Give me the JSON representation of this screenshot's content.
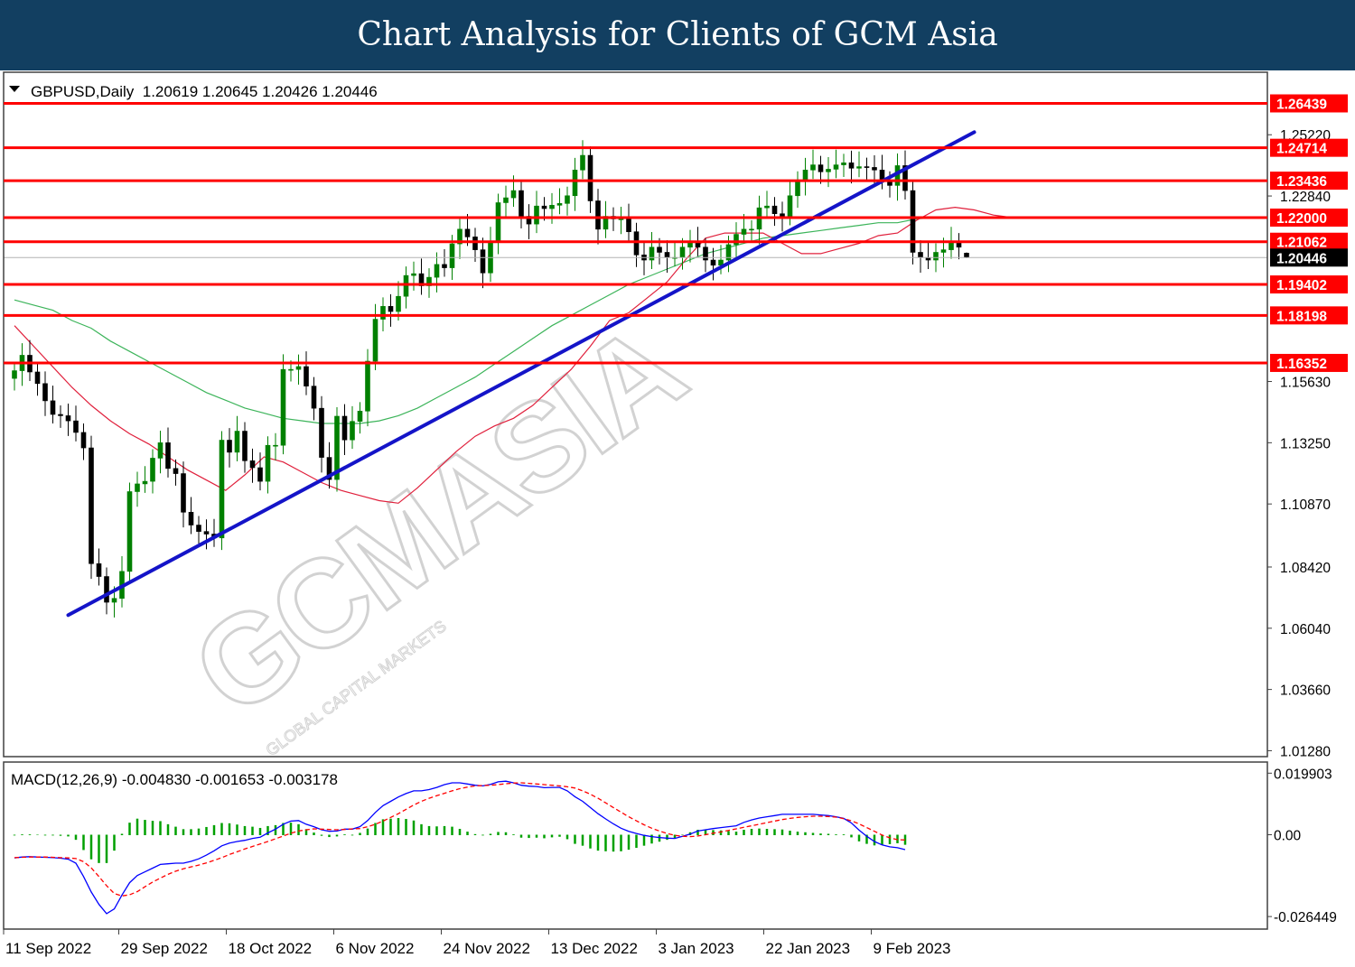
{
  "header": {
    "title": "Chart Analysis for Clients of GCM Asia"
  },
  "price_panel": {
    "info_line": "GBPUSD,Daily  1.20619 1.20645 1.20426 1.20446",
    "dropdown_icon": "triangle-down-icon",
    "current_price": "1.20446"
  },
  "macd_panel": {
    "info_line": "MACD(12,26,9) -0.004830 -0.001653 -0.003178",
    "axis_labels": [
      "0.019903",
      "0.00",
      "-0.026449"
    ]
  },
  "watermark": {
    "main": "GCMASIA",
    "sub": "GLOBAL CAPITAL MARKETS"
  },
  "colors": {
    "header_bg": "#123f61",
    "resistance_line": "#ff0000",
    "trend_line": "#1414c8",
    "ma_fast": "#e0203c",
    "ma_slow": "#3cb45a",
    "bull_candle": "#008000",
    "bear_candle": "#000000",
    "macd_line": "#0000ff",
    "signal_line": "#ff0000",
    "histogram": "#00a000"
  },
  "chart_data": {
    "type": "candlestick",
    "symbol": "GBPUSD",
    "timeframe": "Daily",
    "ohlc_last": {
      "open": 1.20619,
      "high": 1.20645,
      "low": 1.20426,
      "close": 1.20446
    },
    "ylim": [
      1.0105,
      1.2765
    ],
    "y_ticks": [
      1.2522,
      1.2284,
      1.1563,
      1.1325,
      1.1087,
      1.0842,
      1.0604,
      1.0366,
      1.0128
    ],
    "y_tick_labels": [
      "1.25220",
      "1.22840",
      "1.15630",
      "1.13250",
      "1.10870",
      "1.08420",
      "1.06040",
      "1.03660",
      "1.01280"
    ],
    "horizontal_levels": [
      1.26439,
      1.24714,
      1.23436,
      1.22,
      1.21062,
      1.19402,
      1.18198,
      1.16352
    ],
    "horizontal_level_labels": [
      "1.26439",
      "1.24714",
      "1.23436",
      "1.22000",
      "1.21062",
      "1.19402",
      "1.18198",
      "1.16352"
    ],
    "x_labels": [
      "11 Sep 2022",
      "29 Sep 2022",
      "18 Oct 2022",
      "6 Nov 2022",
      "24 Nov 2022",
      "13 Dec 2022",
      "3 Jan 2023",
      "22 Jan 2023",
      "9 Feb 2023"
    ],
    "x_label_bars": [
      0,
      15,
      29,
      43,
      57,
      71,
      85,
      99,
      113
    ],
    "trend_line": {
      "start": {
        "bar": 7,
        "price": 1.0655
      },
      "end": {
        "bar": 125,
        "price": 1.2532
      }
    },
    "close": [
      1.1605,
      1.1665,
      1.16,
      1.1555,
      1.1488,
      1.1435,
      1.143,
      1.141,
      1.1365,
      1.1305,
      1.0855,
      1.0805,
      1.0705,
      1.072,
      1.0825,
      1.1135,
      1.1165,
      1.1175,
      1.1265,
      1.1325,
      1.1225,
      1.1205,
      1.1055,
      1.1005,
      1.098,
      1.097,
      1.0955,
      1.1335,
      1.1288,
      1.137,
      1.1255,
      1.1228,
      1.1175,
      1.1315,
      1.1315,
      1.161,
      1.161,
      1.1621,
      1.1545,
      1.1459,
      1.1268,
      1.1182,
      1.1428,
      1.1336,
      1.1408,
      1.1448,
      1.1642,
      1.1805,
      1.1855,
      1.1835,
      1.1894,
      1.1975,
      1.1982,
      1.1935,
      1.1968,
      1.2018,
      1.2005,
      1.2098,
      1.2155,
      1.2125,
      1.2075,
      1.1985,
      1.2105,
      1.2258,
      1.2277,
      1.2305,
      1.2205,
      1.2175,
      1.2245,
      1.2235,
      1.2248,
      1.2255,
      1.2285,
      1.2385,
      1.2442,
      1.2265,
      1.2155,
      1.2205,
      1.2195,
      1.2195,
      1.2145,
      1.2055,
      1.2035,
      1.2085,
      1.2065,
      1.2045,
      1.2045,
      1.2085,
      1.2105,
      1.2085,
      1.2035,
      1.2015,
      1.2035,
      1.2095,
      1.2135,
      1.2155,
      1.2155,
      1.2238,
      1.2245,
      1.2215,
      1.2205,
      1.2285,
      1.2345,
      1.2385,
      1.2405,
      1.2378,
      1.2388,
      1.2405,
      1.2413,
      1.2392,
      1.2398,
      1.2395,
      1.2385,
      1.2345,
      1.2325,
      1.2402,
      1.2305,
      1.2065,
      1.2045,
      1.2035,
      1.2065,
      1.2075,
      1.2105,
      1.2085,
      1.2045
    ],
    "fast_ma": [
      1.178,
      1.17,
      1.162,
      1.154,
      1.147,
      1.141,
      1.136,
      1.132,
      1.127,
      1.122,
      1.118,
      1.114,
      1.12,
      1.127,
      1.125,
      1.121,
      1.117,
      1.114,
      1.112,
      1.11,
      1.109,
      1.115,
      1.122,
      1.129,
      1.135,
      1.139,
      1.142,
      1.147,
      1.154,
      1.161,
      1.17,
      1.18,
      1.183,
      1.189,
      1.195,
      1.204,
      1.212,
      1.214,
      1.214,
      1.214,
      1.21,
      1.206,
      1.206,
      1.208,
      1.21,
      1.213,
      1.214,
      1.219,
      1.223,
      1.224,
      1.223,
      1.221,
      1.22
    ],
    "slow_ma": [
      1.188,
      1.186,
      1.184,
      1.18,
      1.177,
      1.172,
      1.168,
      1.164,
      1.16,
      1.156,
      1.152,
      1.149,
      1.146,
      1.144,
      1.142,
      1.141,
      1.14,
      1.14,
      1.14,
      1.141,
      1.143,
      1.146,
      1.15,
      1.154,
      1.158,
      1.163,
      1.168,
      1.173,
      1.178,
      1.182,
      1.186,
      1.19,
      1.194,
      1.197,
      1.2,
      1.203,
      1.206,
      1.208,
      1.21,
      1.212,
      1.213,
      1.214,
      1.215,
      1.216,
      1.217,
      1.218,
      1.218,
      1.2195,
      1.22
    ],
    "macd": {
      "ylim": [
        -0.0305,
        0.0235
      ],
      "main_line": [
        -0.0075,
        -0.0072,
        -0.0071,
        -0.0072,
        -0.0073,
        -0.0074,
        -0.0076,
        -0.0079,
        -0.0092,
        -0.0135,
        -0.0185,
        -0.0225,
        -0.0255,
        -0.024,
        -0.0195,
        -0.0155,
        -0.0132,
        -0.012,
        -0.0108,
        -0.0096,
        -0.0094,
        -0.0092,
        -0.0092,
        -0.0086,
        -0.0078,
        -0.0066,
        -0.0052,
        -0.0036,
        -0.0027,
        -0.0022,
        -0.0018,
        -0.0012,
        -0.0008,
        0.0006,
        0.0018,
        0.0034,
        0.0044,
        0.0046,
        0.0034,
        0.0026,
        0.0016,
        0.0011,
        0.0012,
        0.0018,
        0.0018,
        0.0026,
        0.0046,
        0.0072,
        0.0094,
        0.0108,
        0.0122,
        0.0133,
        0.0142,
        0.0142,
        0.0146,
        0.0153,
        0.0162,
        0.0168,
        0.0168,
        0.0164,
        0.016,
        0.0158,
        0.0163,
        0.0171,
        0.0173,
        0.0168,
        0.016,
        0.0157,
        0.0156,
        0.0152,
        0.0153,
        0.0153,
        0.0142,
        0.0123,
        0.0108,
        0.0088,
        0.0068,
        0.0051,
        0.0035,
        0.0021,
        0.0011,
        0.0004,
        -0.0002,
        -0.0006,
        -0.0009,
        -0.0011,
        -0.0012,
        -0.0005,
        0.0002,
        0.0012,
        0.0016,
        0.002,
        0.0023,
        0.0026,
        0.0029,
        0.004,
        0.0048,
        0.0054,
        0.0058,
        0.0062,
        0.0066,
        0.0066,
        0.0066,
        0.0066,
        0.0066,
        0.0064,
        0.0062,
        0.0058,
        0.0053,
        0.0038,
        0.0015,
        -0.0005,
        -0.0022,
        -0.0033,
        -0.0039,
        -0.0042,
        -0.0048
      ],
      "signal_line": [
        -0.0074,
        -0.0073,
        -0.0072,
        -0.0072,
        -0.0072,
        -0.0073,
        -0.0074,
        -0.0075,
        -0.0077,
        -0.0087,
        -0.0107,
        -0.0135,
        -0.0165,
        -0.019,
        -0.0198,
        -0.0194,
        -0.0184,
        -0.0168,
        -0.0153,
        -0.014,
        -0.0128,
        -0.0118,
        -0.011,
        -0.0104,
        -0.0098,
        -0.0091,
        -0.0083,
        -0.0074,
        -0.0064,
        -0.0055,
        -0.0046,
        -0.0038,
        -0.003,
        -0.0022,
        -0.0013,
        -0.0004,
        0.0005,
        0.0012,
        0.0016,
        0.0019,
        0.0018,
        0.0017,
        0.0016,
        0.0017,
        0.0019,
        0.002,
        0.0026,
        0.0034,
        0.0044,
        0.0056,
        0.0068,
        0.0082,
        0.0096,
        0.0108,
        0.0118,
        0.0126,
        0.0134,
        0.0142,
        0.0149,
        0.0154,
        0.0158,
        0.0159,
        0.016,
        0.0162,
        0.0165,
        0.0167,
        0.0168,
        0.0166,
        0.0164,
        0.0162,
        0.016,
        0.0158,
        0.0155,
        0.0151,
        0.0142,
        0.0131,
        0.0118,
        0.0103,
        0.0088,
        0.0073,
        0.0058,
        0.0045,
        0.0032,
        0.0021,
        0.0012,
        0.0004,
        -0.0002,
        -0.0005,
        -0.0006,
        -0.0004,
        0,
        0.0005,
        0.0009,
        0.0014,
        0.0019,
        0.0024,
        0.0029,
        0.0034,
        0.0039,
        0.0044,
        0.0049,
        0.0053,
        0.0056,
        0.0058,
        0.006,
        0.006,
        0.0059,
        0.0057,
        0.0052,
        0.0045,
        0.0035,
        0.0023,
        0.0011,
        -0.0001,
        -0.001,
        -0.0016,
        -0.0017
      ]
    }
  }
}
